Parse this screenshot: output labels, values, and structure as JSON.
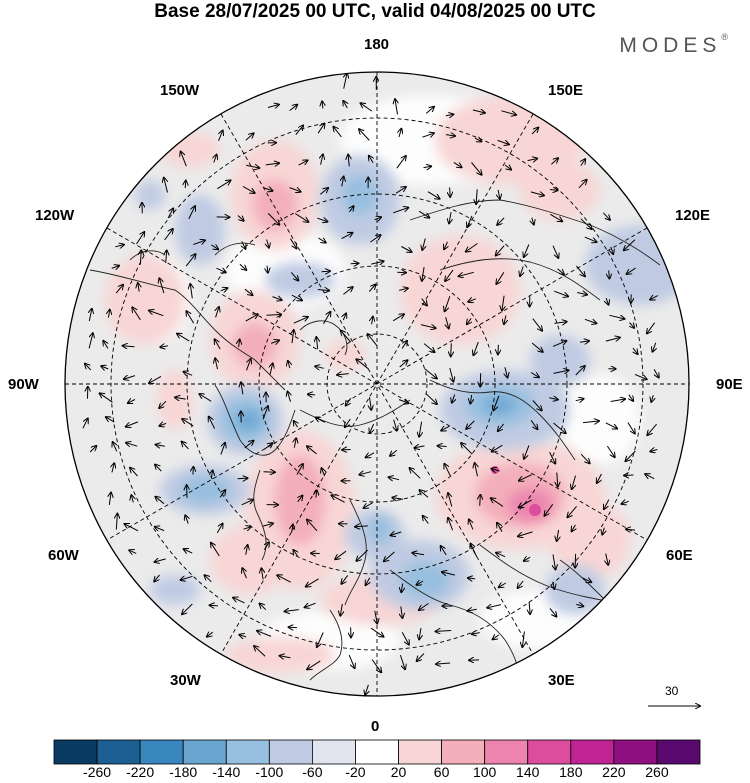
{
  "header": {
    "title": "Base 28/07/2025 00 UTC, valid 04/08/2025 00 UTC",
    "brand": "MODES",
    "brand_mark": "®"
  },
  "map": {
    "projection": "north polar stereographic",
    "meridian_labels": {
      "top": "180",
      "bottom": "0",
      "left": "90W",
      "right": "90E",
      "upper_left_1": "150W",
      "upper_left_2": "120W",
      "lower_left_1": "60W",
      "lower_left_2": "30W",
      "upper_right_1": "150E",
      "upper_right_2": "120E",
      "lower_right_1": "60E",
      "lower_right_2": "30E"
    },
    "reference_vector": "30"
  },
  "colorbar": {
    "colors": [
      "#0a3b63",
      "#1d5f93",
      "#3a86bf",
      "#6aa6d2",
      "#97bfdf",
      "#c0cbe3",
      "#e2e4f0",
      "#ffffff",
      "#f8d6d5",
      "#f3afba",
      "#ec84ae",
      "#dd4d9e",
      "#c22394",
      "#8f1080",
      "#5a0a6e"
    ],
    "labels": [
      "-260",
      "-220",
      "-180",
      "-140",
      "-100",
      "-60",
      "-20",
      "20",
      "60",
      "100",
      "140",
      "180",
      "220",
      "260"
    ]
  },
  "colors": {
    "neutral_fill": "#ebebeb",
    "grid": "#000000"
  }
}
